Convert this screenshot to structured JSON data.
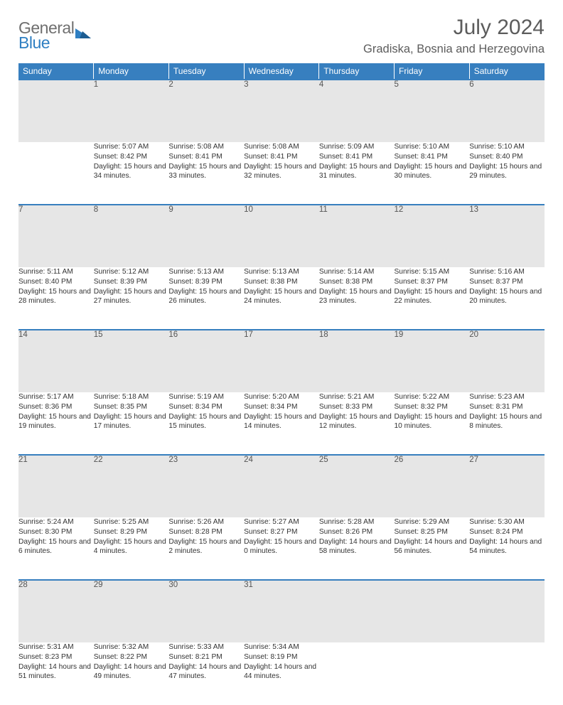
{
  "logo": {
    "general": "General",
    "blue": "Blue"
  },
  "title": "July 2024",
  "location": "Gradiska, Bosnia and Herzegovina",
  "colors": {
    "header_bg": "#377fbf",
    "header_text": "#ffffff",
    "daynum_bg": "#e6e6e6",
    "border_accent": "#377fbf",
    "text": "#333333",
    "title_text": "#5c5c5c",
    "logo_general": "#6f6f6f",
    "logo_blue": "#2f7fc2"
  },
  "weekdays": [
    "Sunday",
    "Monday",
    "Tuesday",
    "Wednesday",
    "Thursday",
    "Friday",
    "Saturday"
  ],
  "weeks": [
    {
      "nums": [
        "",
        "1",
        "2",
        "3",
        "4",
        "5",
        "6"
      ],
      "cells": [
        {
          "sunrise": "",
          "sunset": "",
          "daylight": ""
        },
        {
          "sunrise": "Sunrise: 5:07 AM",
          "sunset": "Sunset: 8:42 PM",
          "daylight": "Daylight: 15 hours and 34 minutes."
        },
        {
          "sunrise": "Sunrise: 5:08 AM",
          "sunset": "Sunset: 8:41 PM",
          "daylight": "Daylight: 15 hours and 33 minutes."
        },
        {
          "sunrise": "Sunrise: 5:08 AM",
          "sunset": "Sunset: 8:41 PM",
          "daylight": "Daylight: 15 hours and 32 minutes."
        },
        {
          "sunrise": "Sunrise: 5:09 AM",
          "sunset": "Sunset: 8:41 PM",
          "daylight": "Daylight: 15 hours and 31 minutes."
        },
        {
          "sunrise": "Sunrise: 5:10 AM",
          "sunset": "Sunset: 8:41 PM",
          "daylight": "Daylight: 15 hours and 30 minutes."
        },
        {
          "sunrise": "Sunrise: 5:10 AM",
          "sunset": "Sunset: 8:40 PM",
          "daylight": "Daylight: 15 hours and 29 minutes."
        }
      ]
    },
    {
      "nums": [
        "7",
        "8",
        "9",
        "10",
        "11",
        "12",
        "13"
      ],
      "cells": [
        {
          "sunrise": "Sunrise: 5:11 AM",
          "sunset": "Sunset: 8:40 PM",
          "daylight": "Daylight: 15 hours and 28 minutes."
        },
        {
          "sunrise": "Sunrise: 5:12 AM",
          "sunset": "Sunset: 8:39 PM",
          "daylight": "Daylight: 15 hours and 27 minutes."
        },
        {
          "sunrise": "Sunrise: 5:13 AM",
          "sunset": "Sunset: 8:39 PM",
          "daylight": "Daylight: 15 hours and 26 minutes."
        },
        {
          "sunrise": "Sunrise: 5:13 AM",
          "sunset": "Sunset: 8:38 PM",
          "daylight": "Daylight: 15 hours and 24 minutes."
        },
        {
          "sunrise": "Sunrise: 5:14 AM",
          "sunset": "Sunset: 8:38 PM",
          "daylight": "Daylight: 15 hours and 23 minutes."
        },
        {
          "sunrise": "Sunrise: 5:15 AM",
          "sunset": "Sunset: 8:37 PM",
          "daylight": "Daylight: 15 hours and 22 minutes."
        },
        {
          "sunrise": "Sunrise: 5:16 AM",
          "sunset": "Sunset: 8:37 PM",
          "daylight": "Daylight: 15 hours and 20 minutes."
        }
      ]
    },
    {
      "nums": [
        "14",
        "15",
        "16",
        "17",
        "18",
        "19",
        "20"
      ],
      "cells": [
        {
          "sunrise": "Sunrise: 5:17 AM",
          "sunset": "Sunset: 8:36 PM",
          "daylight": "Daylight: 15 hours and 19 minutes."
        },
        {
          "sunrise": "Sunrise: 5:18 AM",
          "sunset": "Sunset: 8:35 PM",
          "daylight": "Daylight: 15 hours and 17 minutes."
        },
        {
          "sunrise": "Sunrise: 5:19 AM",
          "sunset": "Sunset: 8:34 PM",
          "daylight": "Daylight: 15 hours and 15 minutes."
        },
        {
          "sunrise": "Sunrise: 5:20 AM",
          "sunset": "Sunset: 8:34 PM",
          "daylight": "Daylight: 15 hours and 14 minutes."
        },
        {
          "sunrise": "Sunrise: 5:21 AM",
          "sunset": "Sunset: 8:33 PM",
          "daylight": "Daylight: 15 hours and 12 minutes."
        },
        {
          "sunrise": "Sunrise: 5:22 AM",
          "sunset": "Sunset: 8:32 PM",
          "daylight": "Daylight: 15 hours and 10 minutes."
        },
        {
          "sunrise": "Sunrise: 5:23 AM",
          "sunset": "Sunset: 8:31 PM",
          "daylight": "Daylight: 15 hours and 8 minutes."
        }
      ]
    },
    {
      "nums": [
        "21",
        "22",
        "23",
        "24",
        "25",
        "26",
        "27"
      ],
      "cells": [
        {
          "sunrise": "Sunrise: 5:24 AM",
          "sunset": "Sunset: 8:30 PM",
          "daylight": "Daylight: 15 hours and 6 minutes."
        },
        {
          "sunrise": "Sunrise: 5:25 AM",
          "sunset": "Sunset: 8:29 PM",
          "daylight": "Daylight: 15 hours and 4 minutes."
        },
        {
          "sunrise": "Sunrise: 5:26 AM",
          "sunset": "Sunset: 8:28 PM",
          "daylight": "Daylight: 15 hours and 2 minutes."
        },
        {
          "sunrise": "Sunrise: 5:27 AM",
          "sunset": "Sunset: 8:27 PM",
          "daylight": "Daylight: 15 hours and 0 minutes."
        },
        {
          "sunrise": "Sunrise: 5:28 AM",
          "sunset": "Sunset: 8:26 PM",
          "daylight": "Daylight: 14 hours and 58 minutes."
        },
        {
          "sunrise": "Sunrise: 5:29 AM",
          "sunset": "Sunset: 8:25 PM",
          "daylight": "Daylight: 14 hours and 56 minutes."
        },
        {
          "sunrise": "Sunrise: 5:30 AM",
          "sunset": "Sunset: 8:24 PM",
          "daylight": "Daylight: 14 hours and 54 minutes."
        }
      ]
    },
    {
      "nums": [
        "28",
        "29",
        "30",
        "31",
        "",
        "",
        ""
      ],
      "cells": [
        {
          "sunrise": "Sunrise: 5:31 AM",
          "sunset": "Sunset: 8:23 PM",
          "daylight": "Daylight: 14 hours and 51 minutes."
        },
        {
          "sunrise": "Sunrise: 5:32 AM",
          "sunset": "Sunset: 8:22 PM",
          "daylight": "Daylight: 14 hours and 49 minutes."
        },
        {
          "sunrise": "Sunrise: 5:33 AM",
          "sunset": "Sunset: 8:21 PM",
          "daylight": "Daylight: 14 hours and 47 minutes."
        },
        {
          "sunrise": "Sunrise: 5:34 AM",
          "sunset": "Sunset: 8:19 PM",
          "daylight": "Daylight: 14 hours and 44 minutes."
        },
        {
          "sunrise": "",
          "sunset": "",
          "daylight": ""
        },
        {
          "sunrise": "",
          "sunset": "",
          "daylight": ""
        },
        {
          "sunrise": "",
          "sunset": "",
          "daylight": ""
        }
      ]
    }
  ]
}
